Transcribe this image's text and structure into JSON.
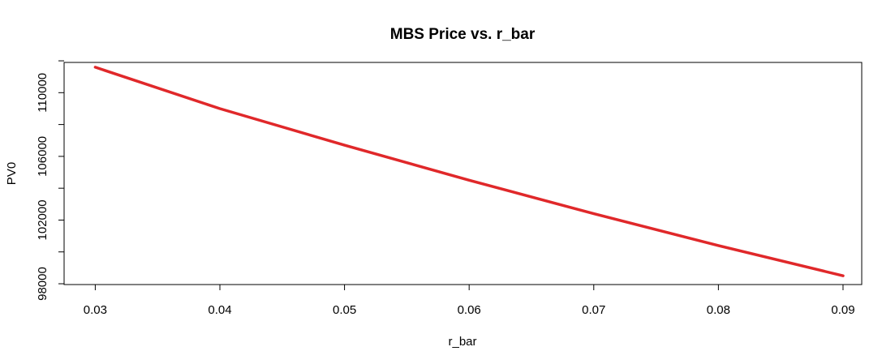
{
  "chart_data": {
    "type": "line",
    "title": "MBS Price vs. r_bar",
    "xlabel": "r_bar",
    "ylabel": "PV0",
    "xlim": [
      0.0275,
      0.0915
    ],
    "ylim": [
      97950,
      111900
    ],
    "x_ticks": [
      0.03,
      0.04,
      0.05,
      0.06,
      0.07,
      0.08,
      0.09
    ],
    "x_tick_labels": [
      "0.03",
      "0.04",
      "0.05",
      "0.06",
      "0.07",
      "0.08",
      "0.09"
    ],
    "y_ticks": [
      98000,
      100000,
      102000,
      104000,
      106000,
      108000,
      110000,
      112000
    ],
    "y_tick_labels": [
      "98000",
      "",
      "102000",
      "",
      "106000",
      "",
      "110000",
      ""
    ],
    "grid": false,
    "line_color": "#e0282a",
    "series": [
      {
        "x": [
          0.03,
          0.04,
          0.05,
          0.06,
          0.07,
          0.08,
          0.09
        ],
        "y": [
          111600,
          109000,
          106700,
          104500,
          102400,
          100400,
          98500
        ]
      }
    ]
  }
}
